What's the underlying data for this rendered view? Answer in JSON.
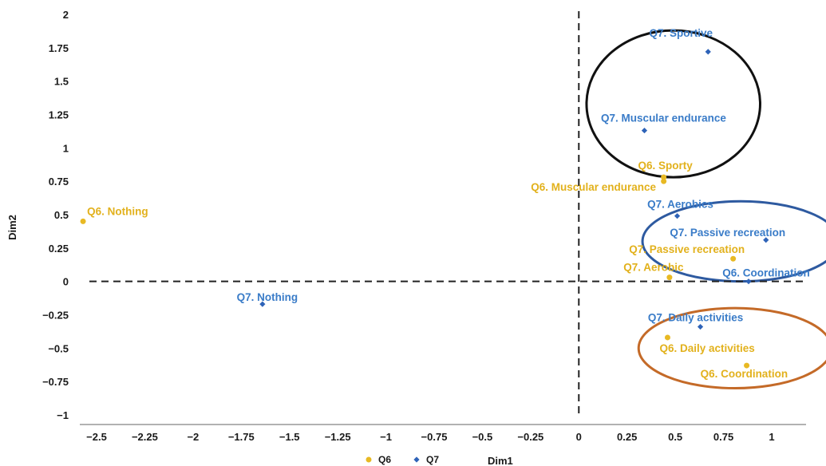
{
  "chart_data": {
    "type": "scatter",
    "title": "",
    "xlabel": "Dim1",
    "ylabel": "Dim2",
    "xlim": [
      -2.6,
      1.0
    ],
    "ylim": [
      -1,
      2
    ],
    "x_ticks": [
      -2.5,
      -2.25,
      -2,
      -1.75,
      -1.5,
      -1.25,
      -1,
      -0.75,
      -0.5,
      -0.25,
      0,
      0.25,
      0.5,
      0.75,
      1
    ],
    "x_tick_labels": [
      "−2.5",
      "−2.25",
      "−2",
      "−1.75",
      "−1.5",
      "−1.25",
      "−1",
      "−0.75",
      "−0.5",
      "−0.25",
      "0",
      "0.25",
      "0.5",
      "0.75",
      "1"
    ],
    "y_ticks": [
      2,
      1.75,
      1.5,
      1.25,
      1,
      0.75,
      0.5,
      0.25,
      0,
      -0.25,
      -0.5,
      -0.75,
      -1
    ],
    "y_tick_labels": [
      "2",
      "1.75",
      "1.5",
      "1.25",
      "1",
      "0.75",
      "0.5",
      "0.25",
      "0",
      "−0.25",
      "−0.5",
      "−0.75",
      "−1"
    ],
    "grid": false,
    "reference_lines": "dashed at x=0 and y=0",
    "legend_position": "bottom",
    "series": [
      {
        "name": "Q6",
        "color": "#e8b923",
        "marker": "circle",
        "points": [
          {
            "label": "Q6. Nothing",
            "x": -2.57,
            "y": 0.45
          },
          {
            "label": "Q6. Sporty",
            "x": 0.44,
            "y": 0.78
          },
          {
            "label": "Q6. Muscular endurance",
            "x": 0.44,
            "y": 0.75
          },
          {
            "label": "Q7. Passive recreation",
            "x": 0.8,
            "y": 0.17
          },
          {
            "label": "Q7. Aerobic",
            "x": 0.47,
            "y": 0.03
          },
          {
            "label": "Q6. Daily activities",
            "x": 0.46,
            "y": -0.42
          },
          {
            "label": "Q6. Coordination",
            "x": 0.87,
            "y": -0.63
          }
        ]
      },
      {
        "name": "Q7",
        "color": "#2e63b8",
        "marker": "diamond",
        "points": [
          {
            "label": "Q7. Sportive",
            "x": 0.67,
            "y": 1.72
          },
          {
            "label": "Q7. Muscular endurance",
            "x": 0.34,
            "y": 1.13
          },
          {
            "label": "Q7. Aerobics",
            "x": 0.51,
            "y": 0.49
          },
          {
            "label": "Q7. Passive recreation",
            "x": 0.97,
            "y": 0.31
          },
          {
            "label": "Q6. Coordination",
            "x": 0.88,
            "y": 0.0
          },
          {
            "label": "Q7. Nothing",
            "x": -1.64,
            "y": -0.17
          },
          {
            "label": "Q7. Daily activities",
            "x": 0.63,
            "y": -0.34
          }
        ]
      }
    ],
    "annotations": [
      {
        "shape": "ellipse",
        "color": "#111111",
        "center": [
          0.49,
          1.33
        ],
        "radii_data": [
          0.45,
          0.55
        ]
      },
      {
        "shape": "ellipse",
        "color": "#2e5aa0",
        "center": [
          0.84,
          0.3
        ],
        "radii_data": [
          0.51,
          0.3
        ]
      },
      {
        "shape": "ellipse",
        "color": "#c46a28",
        "center": [
          0.81,
          -0.5
        ],
        "radii_data": [
          0.5,
          0.3
        ]
      }
    ]
  }
}
